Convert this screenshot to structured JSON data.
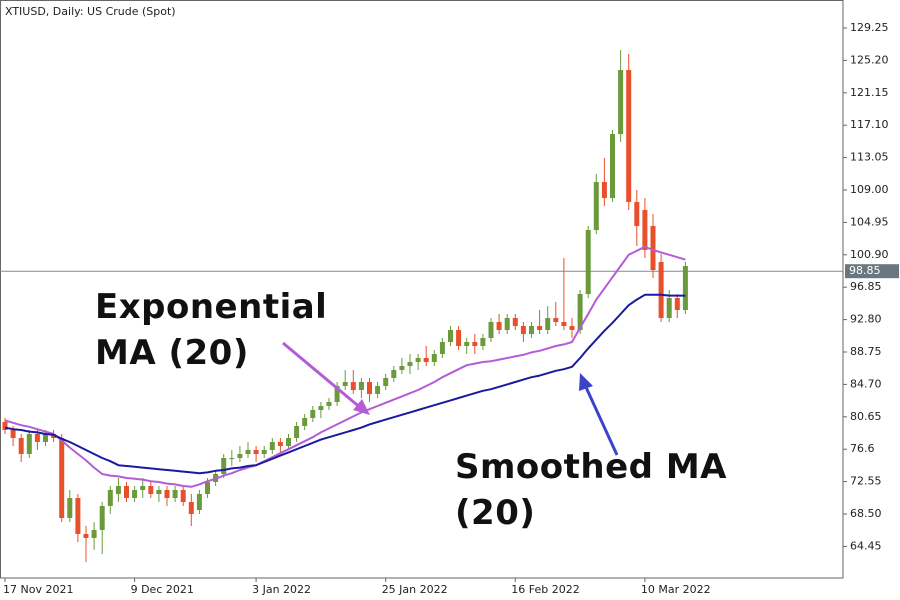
{
  "chart_data": {
    "type": "candlestick",
    "title": "XTIUSD, Daily:  US Crude (Spot)",
    "categories": [
      "17 Nov 2021",
      null,
      null,
      null,
      null,
      null,
      null,
      null,
      null,
      null,
      null,
      null,
      null,
      null,
      null,
      null,
      "9 Dec 2021",
      null,
      null,
      null,
      null,
      null,
      null,
      null,
      null,
      null,
      null,
      null,
      null,
      null,
      null,
      "3 Jan 2022",
      null,
      null,
      null,
      null,
      null,
      null,
      null,
      null,
      null,
      null,
      null,
      null,
      null,
      null,
      null,
      "25 Jan 2022",
      null,
      null,
      null,
      null,
      null,
      null,
      null,
      null,
      null,
      null,
      null,
      null,
      null,
      null,
      null,
      "16 Feb 2022",
      null,
      null,
      null,
      null,
      null,
      null,
      null,
      null,
      null,
      null,
      null,
      null,
      null,
      null,
      null,
      "10 Mar 2022",
      null,
      null,
      null,
      null,
      null
    ],
    "open": [
      80.0,
      79.0,
      78.0,
      76.0,
      78.5,
      77.5,
      78.5,
      78.0,
      68.0,
      70.5,
      66.0,
      65.5,
      66.5,
      69.5,
      71.0,
      72.0,
      70.5,
      71.5,
      72.0,
      71.0,
      71.5,
      70.5,
      71.5,
      70.0,
      69.0,
      71.0,
      72.5,
      73.5,
      75.5,
      75.5,
      76.0,
      76.5,
      76.0,
      76.5,
      77.5,
      77.0,
      78.0,
      79.5,
      80.5,
      81.5,
      82.0,
      82.5,
      84.5,
      85.0,
      84.0,
      85.0,
      83.5,
      84.5,
      85.5,
      86.5,
      87.0,
      87.5,
      88.0,
      87.5,
      88.5,
      90.0,
      91.5,
      89.5,
      90.0,
      89.5,
      90.5,
      92.5,
      91.5,
      93.0,
      92.0,
      91.0,
      92.0,
      91.5,
      93.0,
      92.5,
      92.0,
      91.5,
      96.0,
      104.0,
      110.0,
      108.0,
      116.0,
      124.0,
      107.5,
      106.5,
      104.5,
      100.0,
      93.0,
      95.5,
      94.0
    ],
    "high": [
      80.5,
      79.5,
      78.5,
      79.0,
      79.0,
      79.0,
      79.0,
      78.5,
      71.5,
      71.0,
      67.0,
      67.5,
      70.0,
      72.0,
      73.0,
      72.5,
      72.0,
      73.0,
      72.5,
      72.0,
      72.0,
      72.0,
      72.0,
      71.0,
      71.5,
      73.0,
      74.0,
      76.0,
      76.5,
      77.0,
      77.5,
      77.0,
      77.0,
      78.0,
      78.0,
      78.5,
      80.0,
      81.0,
      82.0,
      82.5,
      83.0,
      85.0,
      86.5,
      86.5,
      85.5,
      85.5,
      85.0,
      86.0,
      87.0,
      88.0,
      88.5,
      88.5,
      89.5,
      89.0,
      90.5,
      92.0,
      92.0,
      90.5,
      91.0,
      91.0,
      93.0,
      93.5,
      93.5,
      93.5,
      92.5,
      92.5,
      94.0,
      94.5,
      95.0,
      100.5,
      93.0,
      96.5,
      104.5,
      111.0,
      113.0,
      116.5,
      126.5,
      126.0,
      109.0,
      108.0,
      106.0,
      101.0,
      96.5,
      96.0,
      100.0
    ],
    "low": [
      78.5,
      77.0,
      75.0,
      75.5,
      76.5,
      77.0,
      77.5,
      67.5,
      67.5,
      65.0,
      62.5,
      64.0,
      63.5,
      68.5,
      70.0,
      70.0,
      70.0,
      70.5,
      70.5,
      70.0,
      69.5,
      70.0,
      69.5,
      67.0,
      68.5,
      70.5,
      72.0,
      73.0,
      74.5,
      75.0,
      75.5,
      75.0,
      75.5,
      76.0,
      76.0,
      76.5,
      77.5,
      79.0,
      80.0,
      80.5,
      81.5,
      82.0,
      84.0,
      83.5,
      83.0,
      82.5,
      83.0,
      84.0,
      85.0,
      86.0,
      86.0,
      86.5,
      87.0,
      87.0,
      88.0,
      89.5,
      89.0,
      88.5,
      88.5,
      89.0,
      90.0,
      91.0,
      91.0,
      91.5,
      90.0,
      90.5,
      91.0,
      91.0,
      92.0,
      91.5,
      90.5,
      91.0,
      95.5,
      103.5,
      107.0,
      107.5,
      115.0,
      106.5,
      102.0,
      100.5,
      98.0,
      92.5,
      92.5,
      93.0,
      93.5
    ],
    "close": [
      79.0,
      78.0,
      76.0,
      78.5,
      77.5,
      78.5,
      78.0,
      68.0,
      70.5,
      66.0,
      65.5,
      66.5,
      69.5,
      71.5,
      72.0,
      70.5,
      71.5,
      72.0,
      71.0,
      71.5,
      70.5,
      71.5,
      70.0,
      68.5,
      71.0,
      72.5,
      73.5,
      75.5,
      75.5,
      76.0,
      76.5,
      76.0,
      76.5,
      77.5,
      77.0,
      78.0,
      79.5,
      80.5,
      81.5,
      82.0,
      82.5,
      84.5,
      85.0,
      84.0,
      85.0,
      83.5,
      84.5,
      85.5,
      86.5,
      87.0,
      87.5,
      88.0,
      87.5,
      88.5,
      90.0,
      91.5,
      89.5,
      90.0,
      89.5,
      90.5,
      92.5,
      91.5,
      93.0,
      92.0,
      91.0,
      92.0,
      91.5,
      93.0,
      92.5,
      92.0,
      91.5,
      96.0,
      104.0,
      110.0,
      108.0,
      116.0,
      124.0,
      107.5,
      104.5,
      101.5,
      99.0,
      93.0,
      95.5,
      94.0,
      99.5
    ],
    "up_color": "#6a9a3c",
    "down_color": "#e8502c",
    "lines": [
      {
        "label": "Exponential MA (20)",
        "color": "#b45cd6",
        "values": [
          80.2,
          79.9,
          79.6,
          79.4,
          79.1,
          78.8,
          78.5,
          77.7,
          76.8,
          76.0,
          75.2,
          74.3,
          73.5,
          73.3,
          73.2,
          73.0,
          72.9,
          72.8,
          72.6,
          72.5,
          72.3,
          72.2,
          72.0,
          71.9,
          72.2,
          72.6,
          72.9,
          73.3,
          73.6,
          74.0,
          74.3,
          74.6,
          75.1,
          75.6,
          76.1,
          76.6,
          77.1,
          77.6,
          78.1,
          78.7,
          79.2,
          79.7,
          80.2,
          80.7,
          81.2,
          81.6,
          82.0,
          82.4,
          82.8,
          83.2,
          83.6,
          84.0,
          84.5,
          85.0,
          85.6,
          86.1,
          86.6,
          87.1,
          87.3,
          87.5,
          87.6,
          87.8,
          88.0,
          88.2,
          88.4,
          88.7,
          88.9,
          89.2,
          89.5,
          89.7,
          90.0,
          91.8,
          93.5,
          95.3,
          96.7,
          98.1,
          99.5,
          100.9,
          101.4,
          101.9,
          101.5,
          101.2,
          100.9,
          100.6,
          100.3
        ]
      },
      {
        "label": "Smoothed MA (20)",
        "color": "#1a1aa0",
        "values": [
          79.3,
          79.1,
          79.0,
          78.8,
          78.7,
          78.5,
          78.4,
          77.9,
          77.5,
          77.0,
          76.5,
          76.0,
          75.5,
          75.1,
          74.6,
          74.5,
          74.4,
          74.3,
          74.2,
          74.1,
          74.0,
          73.9,
          73.8,
          73.7,
          73.6,
          73.7,
          73.9,
          74.0,
          74.2,
          74.3,
          74.5,
          74.6,
          75.0,
          75.4,
          75.8,
          76.2,
          76.6,
          77.0,
          77.4,
          77.8,
          78.1,
          78.4,
          78.7,
          79.0,
          79.3,
          79.7,
          80.0,
          80.3,
          80.6,
          80.9,
          81.2,
          81.5,
          81.8,
          82.1,
          82.4,
          82.7,
          83.0,
          83.3,
          83.6,
          83.9,
          84.1,
          84.4,
          84.7,
          85.0,
          85.3,
          85.6,
          85.8,
          86.1,
          86.4,
          86.6,
          86.9,
          88.0,
          89.2,
          90.3,
          91.4,
          92.4,
          93.5,
          94.6,
          95.3,
          95.9,
          95.9,
          95.9,
          95.8,
          95.8,
          95.8
        ]
      }
    ],
    "last_price": 98.85,
    "ylim": [
      60.5,
      132.75
    ],
    "yticks": [
      64.45,
      {
        "value": 68.5,
        "label": "68.50"
      },
      72.55,
      76.6,
      80.65,
      {
        "value": 84.7,
        "label": "84.70"
      },
      88.75,
      {
        "value": 92.8,
        "label": "92.80"
      },
      96.85,
      {
        "value": 100.9,
        "label": "100.90"
      },
      104.95,
      {
        "value": 109.0,
        "label": "109.00"
      },
      113.05,
      {
        "value": 117.1,
        "label": "117.10"
      },
      121.15,
      {
        "value": 125.2,
        "label": "125.20"
      },
      129.25
    ]
  }
}
